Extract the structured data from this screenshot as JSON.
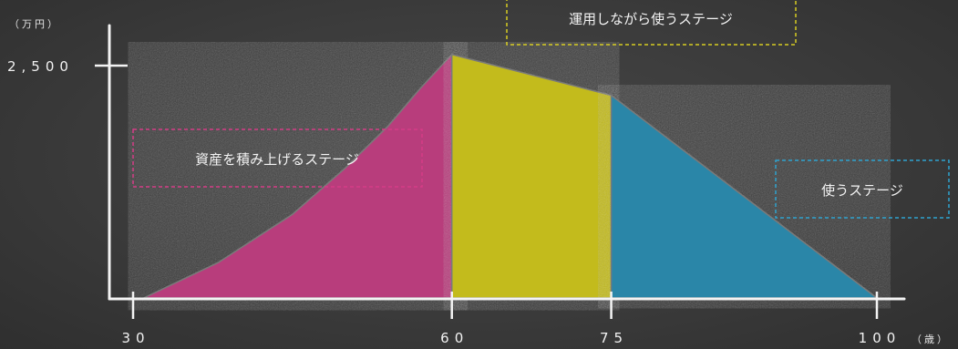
{
  "chart_data": {
    "type": "area",
    "title": "",
    "ylabel": "（万円）",
    "xlabel": "（歳）",
    "x_ticks": [
      "30",
      "60",
      "75",
      "100"
    ],
    "y_ticks": [
      "2,500"
    ],
    "xlim": [
      30,
      100
    ],
    "ylim": [
      0,
      2500
    ],
    "grid": false,
    "colors": {
      "accumulate": "#b83d7c",
      "operate": "#c3bb1b",
      "spend": "#2a86a8"
    },
    "series": [
      {
        "name": "資産を積み上げるステージ",
        "color": "#b83d7c",
        "x": [
          31,
          38,
          45,
          50,
          54,
          57,
          60
        ],
        "y": [
          0,
          380,
          900,
          1400,
          1850,
          2250,
          2620
        ]
      },
      {
        "name": "運用しながら使うステージ",
        "color": "#c3bb1b",
        "x": [
          60,
          75
        ],
        "y": [
          2620,
          2180
        ]
      },
      {
        "name": "使うステージ",
        "color": "#2a86a8",
        "x": [
          75,
          100
        ],
        "y": [
          2180,
          0
        ]
      }
    ]
  }
}
